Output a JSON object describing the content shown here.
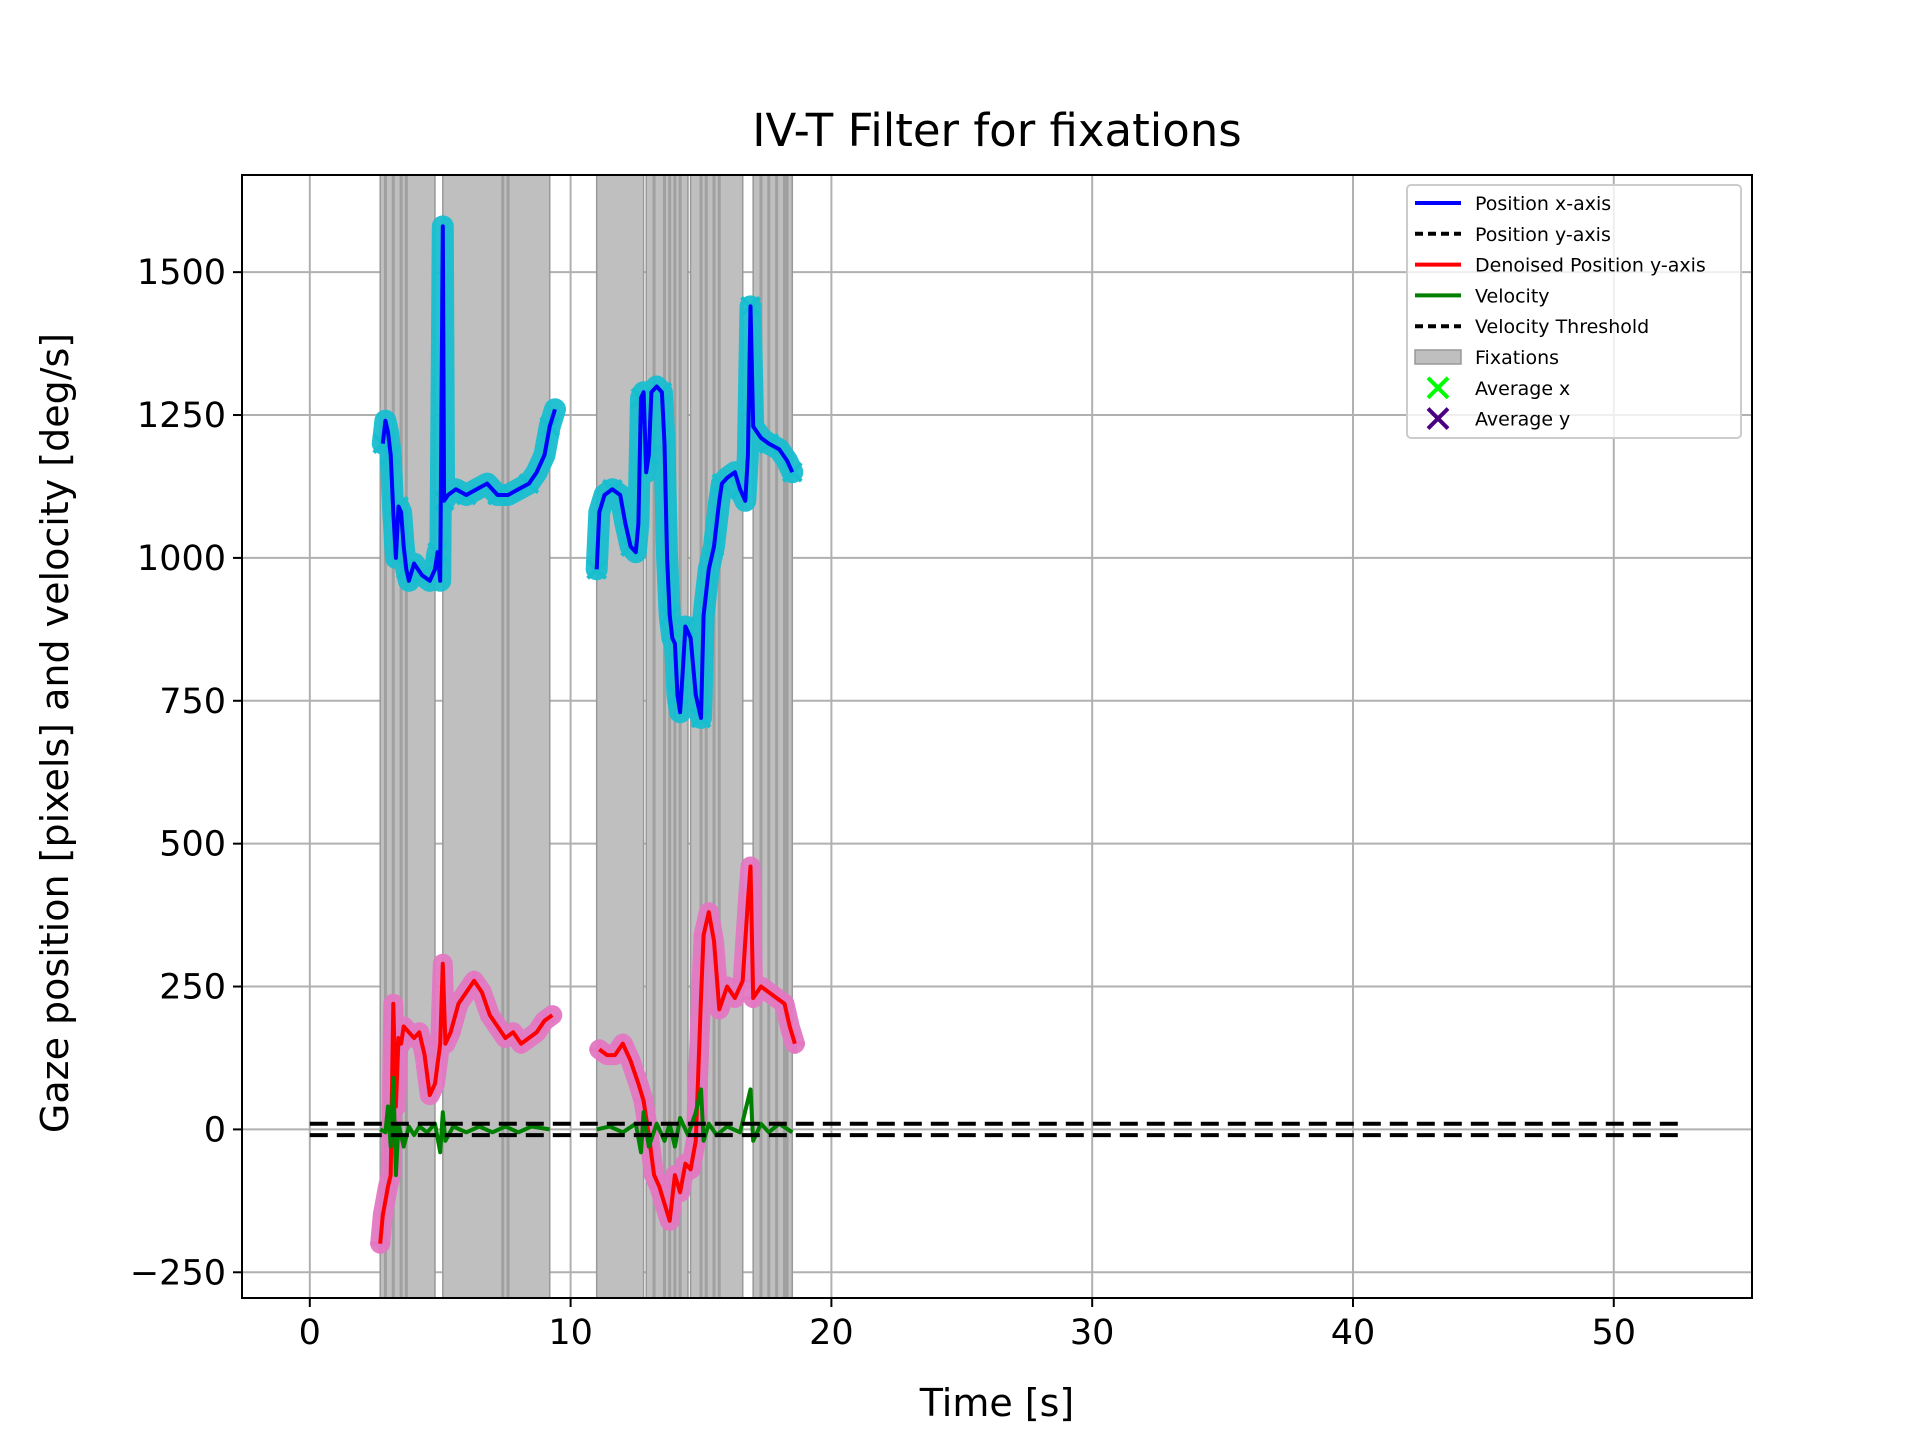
{
  "chart_data": {
    "type": "line",
    "title": "IV-T Filter for fixations",
    "xlabel": "Time [s]",
    "ylabel": "Gaze position [pixels] and velocity [deg/s]",
    "xlim": [
      -2.6,
      55.3
    ],
    "ylim": [
      -295,
      1670
    ],
    "xticks": [
      0,
      10,
      20,
      30,
      40,
      50
    ],
    "yticks": [
      -250,
      0,
      250,
      500,
      750,
      1000,
      1250,
      1500
    ],
    "ytick_labels": [
      "−250",
      "0",
      "250",
      "500",
      "750",
      "1000",
      "1250",
      "1500"
    ],
    "grid": true,
    "legend_position": "upper right",
    "colors": {
      "position_x": "#0000ff",
      "position_y": "#000000",
      "denoised_y": "#ff0000",
      "velocity": "#008000",
      "threshold": "#000000",
      "fixation_fill": "#bfbfbf",
      "fixation_edge": "#999999",
      "average_x": "#00ff00",
      "average_y": "#4b0082",
      "x_marker_cyan": "#17becf",
      "y_marker_pink": "#e377c2"
    },
    "fixation_intervals": [
      [
        2.7,
        4.8
      ],
      [
        5.1,
        9.2
      ],
      [
        11.0,
        12.8
      ],
      [
        12.9,
        14.5
      ],
      [
        14.6,
        16.6
      ],
      [
        17.0,
        18.5
      ]
    ],
    "fixation_edge_lines": [
      2.9,
      3.2,
      3.5,
      3.7,
      7.4,
      7.6,
      13.2,
      13.6,
      13.8,
      14.0,
      14.2,
      15.0,
      15.2,
      15.5,
      15.7,
      17.3,
      17.6,
      17.9,
      18.2,
      18.3
    ],
    "velocity_threshold": [
      10,
      -10
    ],
    "threshold_range": [
      0,
      52.8
    ],
    "series": [
      {
        "name": "Position x-axis",
        "segments": [
          [
            [
              2.8,
              1200
            ],
            [
              2.9,
              1240
            ],
            [
              3.0,
              1220
            ],
            [
              3.1,
              1180
            ],
            [
              3.2,
              1080
            ],
            [
              3.3,
              1000
            ],
            [
              3.4,
              1090
            ],
            [
              3.5,
              1080
            ],
            [
              3.6,
              1020
            ],
            [
              3.7,
              980
            ],
            [
              3.8,
              960
            ],
            [
              4.0,
              990
            ],
            [
              4.3,
              970
            ],
            [
              4.6,
              960
            ],
            [
              4.8,
              980
            ],
            [
              4.9,
              1010
            ],
            [
              5.0,
              960
            ],
            [
              5.1,
              1580
            ],
            [
              5.15,
              1100
            ],
            [
              5.3,
              1110
            ],
            [
              5.6,
              1120
            ],
            [
              6.0,
              1110
            ],
            [
              6.4,
              1120
            ],
            [
              6.8,
              1130
            ],
            [
              7.2,
              1110
            ],
            [
              7.6,
              1110
            ],
            [
              8.0,
              1120
            ],
            [
              8.4,
              1130
            ],
            [
              8.7,
              1150
            ],
            [
              9.0,
              1180
            ],
            [
              9.2,
              1230
            ],
            [
              9.4,
              1260
            ]
          ],
          [
            [
              11.0,
              980
            ],
            [
              11.1,
              1080
            ],
            [
              11.3,
              1110
            ],
            [
              11.6,
              1120
            ],
            [
              11.9,
              1110
            ],
            [
              12.1,
              1060
            ],
            [
              12.3,
              1020
            ],
            [
              12.5,
              1010
            ],
            [
              12.6,
              1060
            ],
            [
              12.7,
              1280
            ],
            [
              12.8,
              1290
            ],
            [
              12.9,
              1150
            ],
            [
              13.0,
              1180
            ],
            [
              13.1,
              1290
            ],
            [
              13.3,
              1300
            ],
            [
              13.5,
              1290
            ],
            [
              13.6,
              1200
            ],
            [
              13.7,
              1000
            ],
            [
              13.8,
              900
            ],
            [
              13.9,
              860
            ],
            [
              14.0,
              850
            ],
            [
              14.1,
              760
            ],
            [
              14.2,
              730
            ],
            [
              14.3,
              800
            ],
            [
              14.4,
              880
            ],
            [
              14.6,
              860
            ],
            [
              14.8,
              760
            ],
            [
              15.0,
              720
            ],
            [
              15.1,
              900
            ],
            [
              15.3,
              980
            ],
            [
              15.5,
              1020
            ],
            [
              15.6,
              1060
            ],
            [
              15.7,
              1100
            ],
            [
              15.8,
              1130
            ],
            [
              16.0,
              1140
            ],
            [
              16.3,
              1150
            ],
            [
              16.5,
              1120
            ],
            [
              16.7,
              1100
            ],
            [
              16.8,
              1180
            ],
            [
              16.9,
              1440
            ],
            [
              17.0,
              1230
            ],
            [
              17.3,
              1210
            ],
            [
              17.6,
              1200
            ],
            [
              18.0,
              1190
            ],
            [
              18.3,
              1170
            ],
            [
              18.5,
              1150
            ]
          ]
        ]
      },
      {
        "name": "Denoised Position y-axis",
        "segments": [
          [
            [
              2.7,
              -200
            ],
            [
              2.8,
              -150
            ],
            [
              3.0,
              -100
            ],
            [
              3.1,
              -80
            ],
            [
              3.2,
              220
            ],
            [
              3.3,
              40
            ],
            [
              3.4,
              160
            ],
            [
              3.5,
              150
            ],
            [
              3.6,
              180
            ],
            [
              3.8,
              170
            ],
            [
              4.0,
              160
            ],
            [
              4.2,
              170
            ],
            [
              4.4,
              130
            ],
            [
              4.6,
              60
            ],
            [
              4.8,
              80
            ],
            [
              5.0,
              150
            ],
            [
              5.1,
              290
            ],
            [
              5.2,
              150
            ],
            [
              5.4,
              170
            ],
            [
              5.7,
              220
            ],
            [
              6.0,
              240
            ],
            [
              6.3,
              260
            ],
            [
              6.6,
              240
            ],
            [
              6.9,
              200
            ],
            [
              7.2,
              180
            ],
            [
              7.5,
              160
            ],
            [
              7.8,
              170
            ],
            [
              8.1,
              150
            ],
            [
              8.4,
              160
            ],
            [
              8.7,
              170
            ],
            [
              9.0,
              190
            ],
            [
              9.3,
              200
            ]
          ],
          [
            [
              11.1,
              140
            ],
            [
              11.4,
              130
            ],
            [
              11.7,
              130
            ],
            [
              12.0,
              150
            ],
            [
              12.3,
              120
            ],
            [
              12.6,
              80
            ],
            [
              12.8,
              50
            ],
            [
              13.0,
              -10
            ],
            [
              13.2,
              -80
            ],
            [
              13.4,
              -100
            ],
            [
              13.6,
              -130
            ],
            [
              13.8,
              -160
            ],
            [
              14.0,
              -80
            ],
            [
              14.2,
              -110
            ],
            [
              14.4,
              -60
            ],
            [
              14.6,
              -70
            ],
            [
              14.8,
              -20
            ],
            [
              15.0,
              230
            ],
            [
              15.1,
              340
            ],
            [
              15.3,
              380
            ],
            [
              15.5,
              330
            ],
            [
              15.7,
              210
            ],
            [
              16.0,
              250
            ],
            [
              16.3,
              230
            ],
            [
              16.6,
              260
            ],
            [
              16.8,
              400
            ],
            [
              16.9,
              460
            ],
            [
              17.0,
              230
            ],
            [
              17.3,
              250
            ],
            [
              17.6,
              240
            ],
            [
              17.9,
              230
            ],
            [
              18.2,
              220
            ],
            [
              18.4,
              180
            ],
            [
              18.6,
              150
            ]
          ]
        ]
      },
      {
        "name": "Velocity",
        "segments": [
          [
            [
              2.7,
              0
            ],
            [
              2.9,
              -5
            ],
            [
              3.0,
              40
            ],
            [
              3.1,
              -30
            ],
            [
              3.2,
              90
            ],
            [
              3.3,
              -80
            ],
            [
              3.4,
              10
            ],
            [
              3.6,
              -30
            ],
            [
              3.8,
              5
            ],
            [
              4.0,
              -10
            ],
            [
              4.2,
              5
            ],
            [
              4.5,
              -5
            ],
            [
              4.8,
              10
            ],
            [
              5.0,
              -40
            ],
            [
              5.1,
              30
            ],
            [
              5.2,
              -20
            ],
            [
              5.5,
              5
            ],
            [
              6.0,
              -5
            ],
            [
              6.5,
              5
            ],
            [
              7.0,
              -5
            ],
            [
              7.5,
              5
            ],
            [
              8.0,
              -5
            ],
            [
              8.5,
              5
            ],
            [
              9.2,
              0
            ]
          ],
          [
            [
              11.0,
              0
            ],
            [
              11.5,
              5
            ],
            [
              12.0,
              -5
            ],
            [
              12.5,
              10
            ],
            [
              12.7,
              -40
            ],
            [
              12.8,
              30
            ],
            [
              13.0,
              -30
            ],
            [
              13.3,
              10
            ],
            [
              13.6,
              -20
            ],
            [
              13.8,
              10
            ],
            [
              14.0,
              -30
            ],
            [
              14.2,
              20
            ],
            [
              14.5,
              -10
            ],
            [
              14.8,
              30
            ],
            [
              15.0,
              70
            ],
            [
              15.1,
              -20
            ],
            [
              15.3,
              10
            ],
            [
              15.6,
              -10
            ],
            [
              16.0,
              5
            ],
            [
              16.5,
              -5
            ],
            [
              16.9,
              70
            ],
            [
              17.0,
              -20
            ],
            [
              17.3,
              10
            ],
            [
              17.6,
              -5
            ],
            [
              18.0,
              10
            ],
            [
              18.5,
              -5
            ]
          ]
        ]
      }
    ],
    "legend": [
      {
        "label": "Position x-axis",
        "kind": "line",
        "color": "#0000ff",
        "dash": ""
      },
      {
        "label": "Position y-axis",
        "kind": "line",
        "color": "#000000",
        "dash": "12,6"
      },
      {
        "label": "Denoised Position y-axis",
        "kind": "line",
        "color": "#ff0000",
        "dash": ""
      },
      {
        "label": "Velocity",
        "kind": "line",
        "color": "#008000",
        "dash": ""
      },
      {
        "label": "Velocity Threshold",
        "kind": "line",
        "color": "#000000",
        "dash": "12,6"
      },
      {
        "label": "Fixations",
        "kind": "patch",
        "color": "#bfbfbf",
        "dash": ""
      },
      {
        "label": "Average x",
        "kind": "x",
        "color": "#00ff00",
        "dash": ""
      },
      {
        "label": "Average y",
        "kind": "x",
        "color": "#4b0082",
        "dash": ""
      }
    ]
  }
}
